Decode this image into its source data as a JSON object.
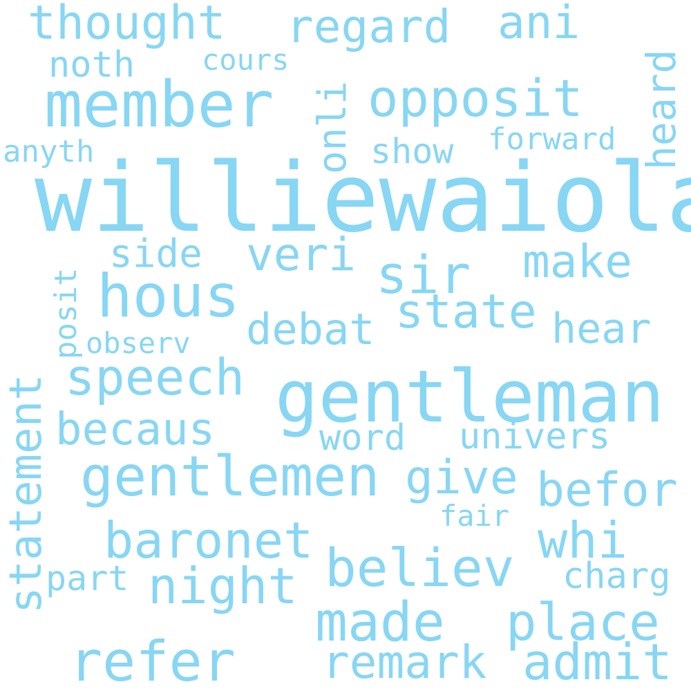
{
  "word_color": "#87d6f4",
  "background": "#ffffff",
  "words": {
    "williewaiola": "williewaiola",
    "gentleman": "gentleman",
    "member": "member",
    "gentlemen": "gentlemen",
    "hous": "hous",
    "opposit": "opposit",
    "thought": "thought",
    "regard": "regard",
    "ani": "ani",
    "heard": "heard",
    "noth": "noth",
    "cours": "cours",
    "onli": "onli",
    "show": "show",
    "forward": "forward",
    "anyth": "anyth",
    "sir": "sir",
    "posit": "posit",
    "side": "side",
    "veri": "veri",
    "make": "make",
    "state": "state",
    "hear": "hear",
    "debat": "debat",
    "observ": "observ",
    "speech": "speech",
    "statement": "statement",
    "becaus": "becaus",
    "word": "word",
    "univers": "univers",
    "give": "give",
    "befor": "befor",
    "fair": "fair",
    "baronet": "baronet",
    "whi": "whi",
    "believ": "believ",
    "charg": "charg",
    "part": "part",
    "night": "night",
    "made": "made",
    "place": "place",
    "refer": "refer",
    "remark": "remark",
    "admit": "admit"
  }
}
